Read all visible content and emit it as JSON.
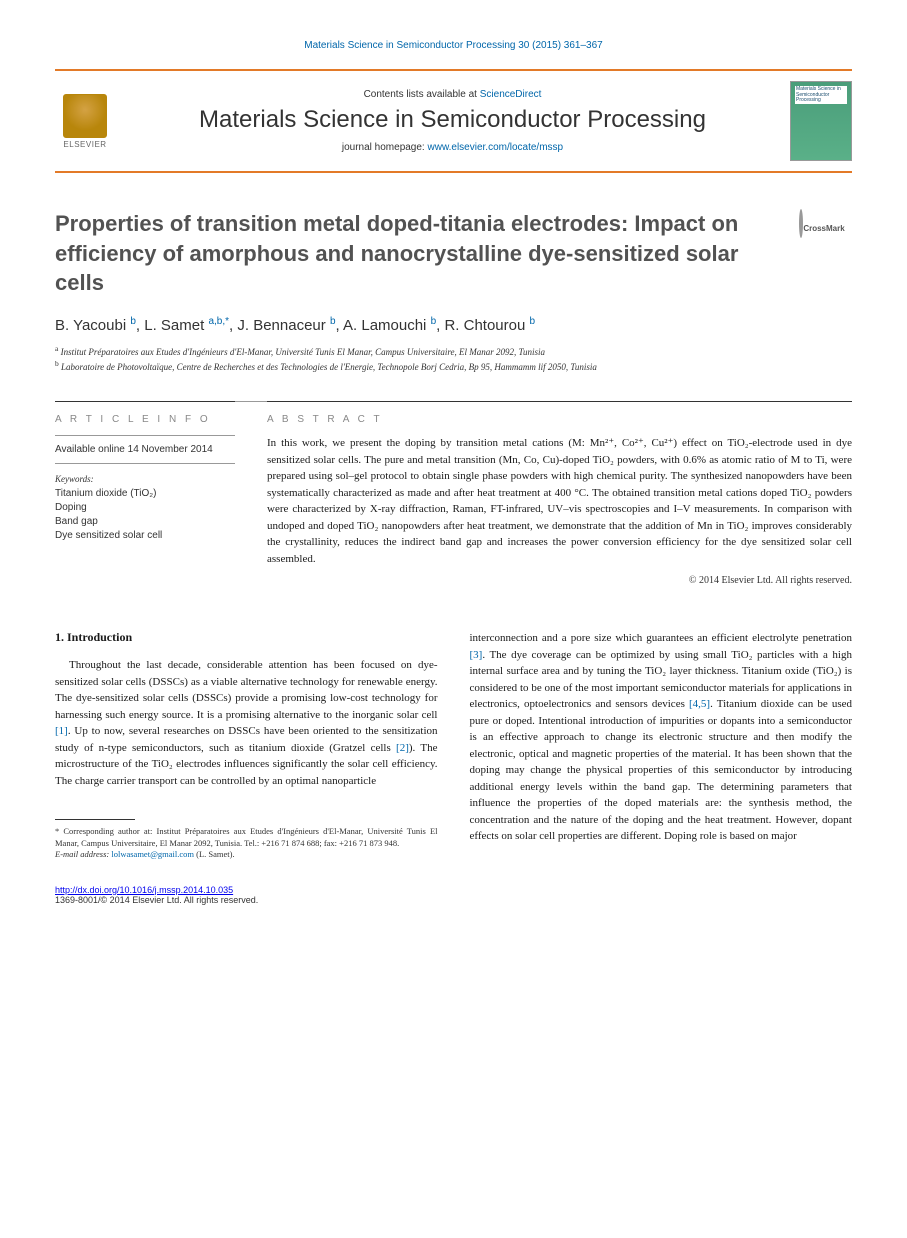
{
  "header": {
    "citation_line": "Materials Science in Semiconductor Processing 30 (2015) 361–367",
    "contents_prefix": "Contents lists available at ",
    "contents_link": "ScienceDirect",
    "journal_title": "Materials Science in Semiconductor Processing",
    "homepage_prefix": "journal homepage: ",
    "homepage_url": "www.elsevier.com/locate/mssp",
    "elsevier_label": "ELSEVIER",
    "cover_text": "Materials Science in Semiconductor Processing"
  },
  "crossmark_label": "CrossMark",
  "title": "Properties of transition metal doped-titania electrodes: Impact on efficiency of amorphous and nanocrystalline dye-sensitized solar cells",
  "authors_html": "B. Yacoubi <sup>b</sup>, L. Samet <sup>a,b,*</sup>, J. Bennaceur <sup>b</sup>, A. Lamouchi <sup>b</sup>, R. Chtourou <sup>b</sup>",
  "affiliations": {
    "a": "Institut Préparatoires aux Etudes d'Ingénieurs d'El-Manar, Université Tunis El Manar, Campus Universitaire, El Manar 2092, Tunisia",
    "b": "Laboratoire de Photovoltaïque, Centre de Recherches et des Technologies de l'Energie, Technopole Borj Cedria, Bp 95, Hammamm lif 2050, Tunisia"
  },
  "article_info": {
    "heading": "A R T I C L E  I N F O",
    "available": "Available online 14 November 2014",
    "keywords_label": "Keywords:",
    "keywords": [
      "Titanium dioxide (TiO₂)",
      "Doping",
      "Band gap",
      "Dye sensitized solar cell"
    ]
  },
  "abstract": {
    "heading": "A B S T R A C T",
    "text": "In this work, we present the doping by transition metal cations (M: Mn²⁺, Co²⁺, Cu²⁺) effect on TiO₂-electrode used in dye sensitized solar cells. The pure and metal transition (Mn, Co, Cu)-doped TiO₂ powders, with 0.6% as atomic ratio of M to Ti, were prepared using sol–gel protocol to obtain single phase powders with high chemical purity. The synthesized nanopowders have been systematically characterized as made and after heat treatment at 400 °C. The obtained transition metal cations doped TiO₂ powders were characterized by X-ray diffraction, Raman, FT-infrared, UV–vis spectroscopies and I–V measurements. In comparison with undoped and doped TiO₂ nanopowders after heat treatment, we demonstrate that the addition of Mn in TiO₂ improves considerably the crystallinity, reduces the indirect band gap and increases the power conversion efficiency for the dye sensitized solar cell assembled.",
    "copyright": "© 2014 Elsevier Ltd. All rights reserved."
  },
  "section1": {
    "heading": "1. Introduction",
    "col1": "Throughout the last decade, considerable attention has been focused on dye-sensitized solar cells (DSSCs) as a viable alternative technology for renewable energy. The dye-sensitized solar cells (DSSCs) provide a promising low-cost technology for harnessing such energy source. It is a promising alternative to the inorganic solar cell [1]. Up to now, several researches on DSSCs have been oriented to the sensitization study of n-type semiconductors, such as titanium dioxide (Gratzel cells [2]). The microstructure of the TiO₂ electrodes influences significantly the solar cell efficiency. The charge carrier transport can be controlled by an optimal nanoparticle",
    "col2": "interconnection and a pore size which guarantees an efficient electrolyte penetration [3]. The dye coverage can be optimized by using small TiO₂ particles with a high internal surface area and by tuning the TiO₂ layer thickness. Titanium oxide (TiO₂) is considered to be one of the most important semiconductor materials for applications in electronics, optoelectronics and sensors devices [4,5]. Titanium dioxide can be used pure or doped. Intentional introduction of impurities or dopants into a semiconductor is an effective approach to change its electronic structure and then modify the electronic, optical and magnetic properties of the material. It has been shown that the doping may change the physical properties of this semiconductor by introducing additional energy levels within the band gap. The determining parameters that influence the properties of the doped materials are: the synthesis method, the concentration and the nature of the doping and the heat treatment. However, dopant effects on solar cell properties are different. Doping role is based on major"
  },
  "footnote": {
    "corresponding": "* Corresponding author at: Institut Préparatoires aux Etudes d'Ingénieurs d'El-Manar, Université Tunis El Manar, Campus Universitaire, El Manar 2092, Tunisia. Tel.: +216 71 874 688; fax: +216 71 873 948.",
    "email_label": "E-mail address: ",
    "email": "lolwasamet@gmail.com",
    "email_name": " (L. Samet)."
  },
  "footer": {
    "doi": "http://dx.doi.org/10.1016/j.mssp.2014.10.035",
    "issn": "1369-8001/© 2014 Elsevier Ltd. All rights reserved."
  },
  "colors": {
    "accent_orange": "#e37a28",
    "link_blue": "#0066aa",
    "text": "#1a1a1a",
    "heading_gray": "#525252",
    "cover_green": "#4a9d7a"
  }
}
